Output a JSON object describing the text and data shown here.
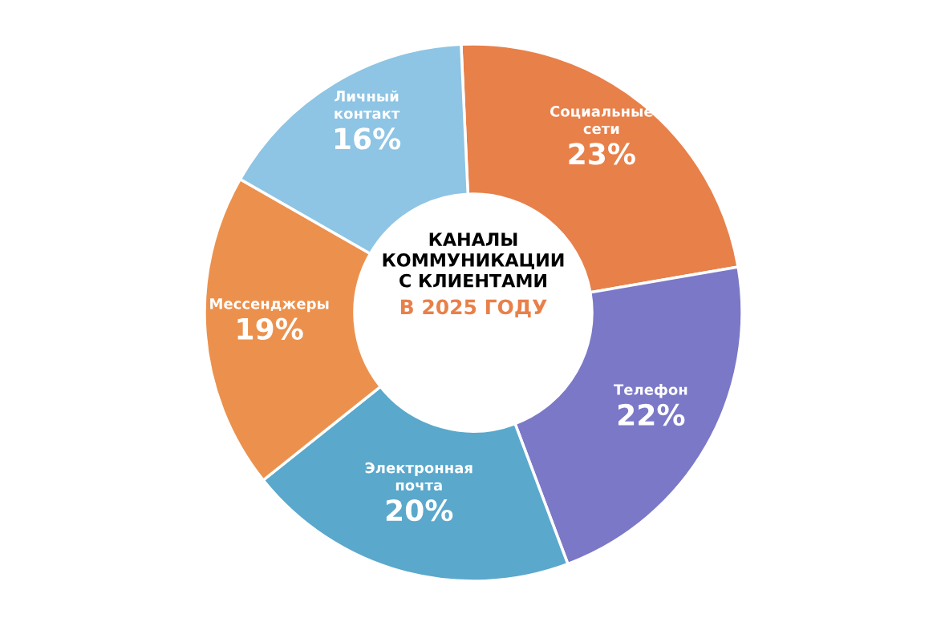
{
  "chart_data": {
    "type": "donut",
    "title": "КАНАЛЫ\nКОММУНИКАЦИИ\nС КЛИЕНТАМИ",
    "subtitle": "В 2025 ГОДУ",
    "categories": [
      "Социальные\nсети",
      "Телефон",
      "Электронная\nпочта",
      "Мессенджеры",
      "Личный\nконтакт"
    ],
    "values": [
      23,
      22,
      20,
      19,
      16
    ],
    "value_labels": [
      "23%",
      "22%",
      "20%",
      "19%",
      "16%"
    ],
    "colors": [
      "#e8804a",
      "#7b78c8",
      "#5aa8cc",
      "#ec914d",
      "#8ec4e4"
    ],
    "legend": false
  }
}
